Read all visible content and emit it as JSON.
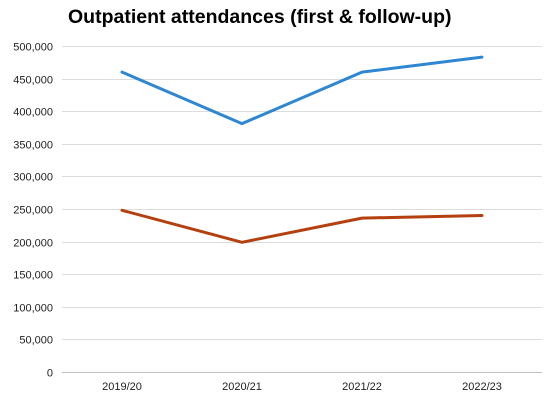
{
  "chart_data": {
    "type": "line",
    "title": "Outpatient attendances (first & follow-up)",
    "categories": [
      "2019/20",
      "2020/21",
      "2021/22",
      "2022/23"
    ],
    "series": [
      {
        "values": [
          460000,
          381000,
          460000,
          483000
        ],
        "color": "#2f86d1"
      },
      {
        "values": [
          248000,
          199000,
          236000,
          240000
        ],
        "color": "#b5400f"
      }
    ],
    "ylim": [
      0,
      500000
    ],
    "yticks": [
      0,
      50000,
      100000,
      150000,
      200000,
      250000,
      300000,
      350000,
      400000,
      450000,
      500000
    ],
    "ytick_labels": [
      "0",
      "50,000",
      "100,000",
      "150,000",
      "200,000",
      "250,000",
      "300,000",
      "350,000",
      "400,000",
      "450,000",
      "500,000"
    ],
    "grid": true,
    "legend": "none",
    "xlabel": "",
    "ylabel": ""
  }
}
